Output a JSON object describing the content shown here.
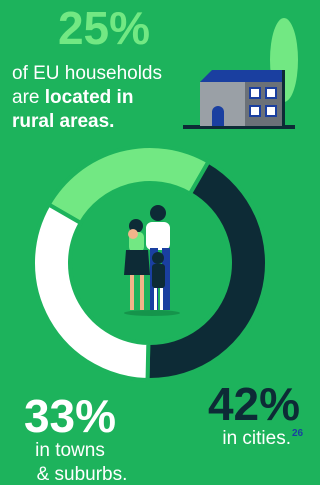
{
  "chart_data": {
    "type": "donut",
    "values": [
      25,
      42,
      33
    ],
    "value_labels": [
      "25%",
      "42%",
      "33%"
    ],
    "colors": [
      "#72e883",
      "#0d2b36",
      "#ffffff"
    ],
    "label_colors": [
      "#72e883",
      "#0d2b36",
      "#ffffff"
    ],
    "labels": [
      [
        "of EU households",
        "are ",
        "located in",
        "rural areas."
      ],
      [
        "in cities."
      ],
      [
        "in towns",
        "& suburbs."
      ]
    ],
    "footnote": "26"
  }
}
